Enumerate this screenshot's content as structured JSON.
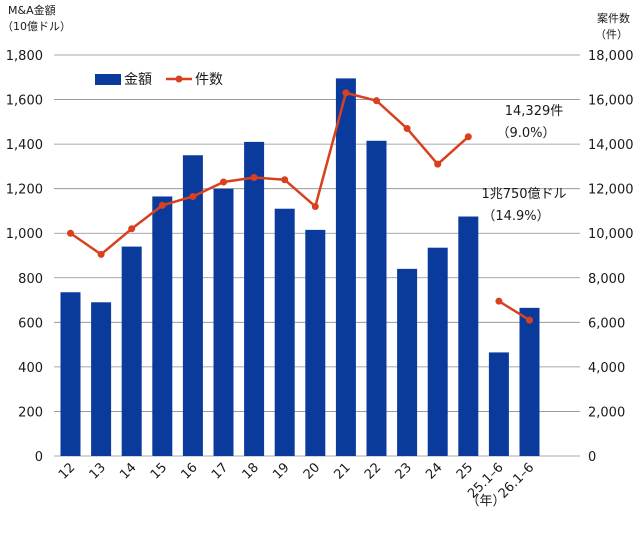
{
  "chart_data": {
    "type": "bar",
    "left_axis_title_line1": "M&A金額",
    "left_axis_title_line2": "（10億ドル）",
    "right_axis_title_line1": "案件数",
    "right_axis_title_line2": "（件）",
    "left_ylim": [
      0,
      1800
    ],
    "left_ticks": [
      "0",
      "200",
      "400",
      "600",
      "800",
      "1,000",
      "1,200",
      "1,400",
      "1,600",
      "1,800"
    ],
    "right_ylim": [
      0,
      18000
    ],
    "right_ticks": [
      "0",
      "2,000",
      "4,000",
      "6,000",
      "8,000",
      "10,000",
      "12,000",
      "14,000",
      "16,000",
      "18,000"
    ],
    "categories": [
      "12",
      "13",
      "14",
      "15",
      "16",
      "17",
      "18",
      "19",
      "20",
      "21",
      "22",
      "23",
      "24",
      "25",
      "25.1–6",
      "26.1–6"
    ],
    "x_unit_label": "（年）",
    "grid": true,
    "legend_position": "top-left",
    "series": [
      {
        "name": "金額",
        "kind": "bar",
        "axis": "left",
        "color": "#0a3b9c",
        "values": [
          735,
          690,
          940,
          1165,
          1350,
          1200,
          1410,
          1110,
          1015,
          1695,
          1415,
          840,
          935,
          1075,
          465,
          665
        ]
      },
      {
        "name": "件数",
        "kind": "line",
        "axis": "right",
        "color": "#d9411e",
        "values": [
          10000,
          9050,
          10200,
          11250,
          11650,
          12300,
          12500,
          12400,
          11200,
          16300,
          15950,
          14700,
          13100,
          14329,
          6950,
          6100
        ],
        "segments": [
          [
            0,
            13
          ],
          [
            14,
            15
          ]
        ]
      }
    ],
    "annotations": [
      {
        "line1": "14,329件",
        "line2": "（9.0%）"
      },
      {
        "line1": "1兆750億ドル",
        "line2": "（14.9%）"
      }
    ]
  }
}
